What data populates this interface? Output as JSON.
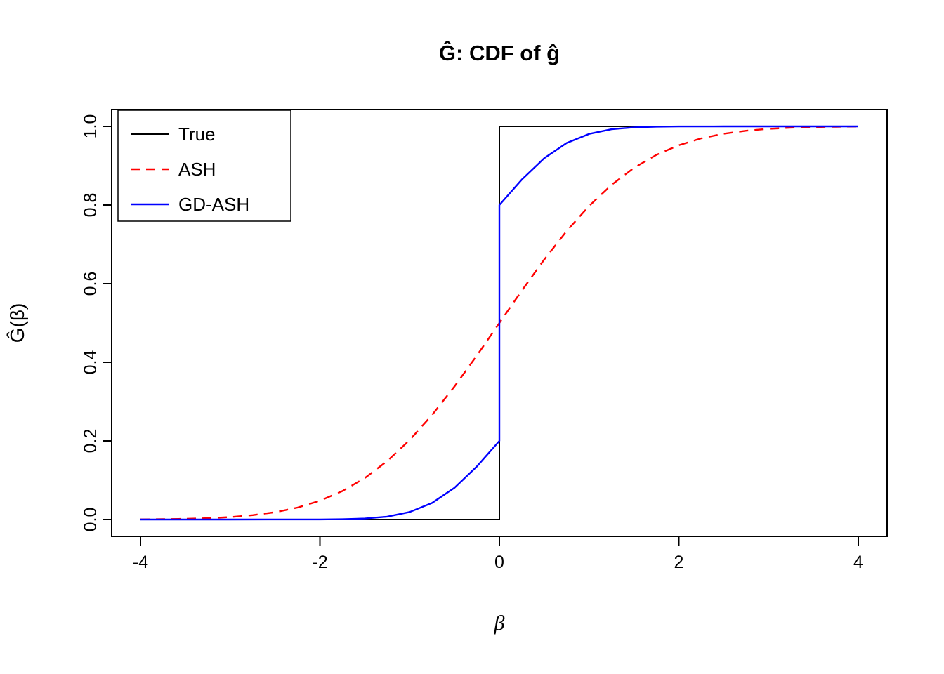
{
  "chart_data": {
    "type": "line",
    "title": "Ĝ: CDF of ĝ",
    "xlabel": "β",
    "ylabel": "Ĝ(β)",
    "xlim": [
      -4.32,
      4.32
    ],
    "ylim": [
      -0.043,
      1.043
    ],
    "xticks": [
      "-4",
      "-2",
      "0",
      "2",
      "4"
    ],
    "yticks": [
      "0.0",
      "0.2",
      "0.4",
      "0.6",
      "0.8",
      "1.0"
    ],
    "grid": false,
    "background_color": "#ffffff",
    "axis_color": "#000000",
    "legend": {
      "position": "top-left"
    },
    "series": [
      {
        "name": "True",
        "color": "#000000",
        "dash": "solid",
        "points": [
          [
            -4,
            0
          ],
          [
            0,
            0
          ],
          [
            0,
            1
          ],
          [
            4,
            1
          ]
        ]
      },
      {
        "name": "ASH",
        "color": "#ff0000",
        "dash": "dashed",
        "points": [
          [
            -4,
            0.0004
          ],
          [
            -3.75,
            0.0009
          ],
          [
            -3.5,
            0.0018
          ],
          [
            -3.25,
            0.0034
          ],
          [
            -3,
            0.0062
          ],
          [
            -2.75,
            0.011
          ],
          [
            -2.5,
            0.0186
          ],
          [
            -2.25,
            0.0304
          ],
          [
            -2,
            0.0478
          ],
          [
            -1.75,
            0.0724
          ],
          [
            -1.5,
            0.1056
          ],
          [
            -1.25,
            0.1488
          ],
          [
            -1,
            0.2023
          ],
          [
            -0.75,
            0.266
          ],
          [
            -0.5,
            0.3385
          ],
          [
            -0.25,
            0.4176
          ],
          [
            0,
            0.5
          ],
          [
            0.25,
            0.5824
          ],
          [
            0.5,
            0.6615
          ],
          [
            0.75,
            0.734
          ],
          [
            1,
            0.7977
          ],
          [
            1.25,
            0.8512
          ],
          [
            1.5,
            0.8944
          ],
          [
            1.75,
            0.9276
          ],
          [
            2,
            0.9522
          ],
          [
            2.25,
            0.9696
          ],
          [
            2.5,
            0.9814
          ],
          [
            2.75,
            0.989
          ],
          [
            3,
            0.9938
          ],
          [
            3.25,
            0.9966
          ],
          [
            3.5,
            0.9982
          ],
          [
            3.75,
            0.9991
          ],
          [
            4,
            0.9996
          ]
        ]
      },
      {
        "name": "GD-ASH",
        "color": "#0000ff",
        "dash": "solid",
        "points": [
          [
            -4,
            0
          ],
          [
            -3,
            0
          ],
          [
            -2.5,
            0.0001
          ],
          [
            -2,
            0.0002
          ],
          [
            -1.75,
            0.0007
          ],
          [
            -1.5,
            0.0025
          ],
          [
            -1.25,
            0.0074
          ],
          [
            -1,
            0.0191
          ],
          [
            -0.75,
            0.0422
          ],
          [
            -0.5,
            0.0809
          ],
          [
            -0.25,
            0.1354
          ],
          [
            0,
            0.2
          ],
          [
            0,
            0.8
          ],
          [
            0.25,
            0.8646
          ],
          [
            0.5,
            0.9191
          ],
          [
            0.75,
            0.9578
          ],
          [
            1,
            0.9809
          ],
          [
            1.25,
            0.9926
          ],
          [
            1.5,
            0.9975
          ],
          [
            1.75,
            0.9993
          ],
          [
            2,
            0.9998
          ],
          [
            2.5,
            1
          ],
          [
            3,
            1
          ],
          [
            3.5,
            1
          ],
          [
            4,
            1
          ]
        ]
      }
    ]
  }
}
